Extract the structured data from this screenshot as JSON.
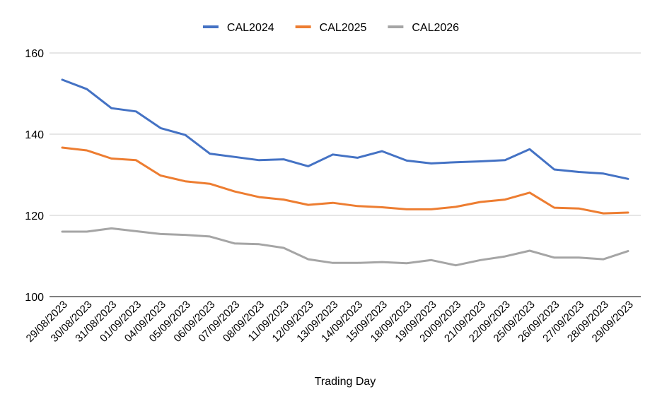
{
  "chart_data": {
    "type": "line",
    "title": "",
    "xlabel": "Trading Day",
    "ylabel": "",
    "ylim": [
      100,
      160
    ],
    "yticks": [
      100,
      120,
      140,
      160
    ],
    "grid": true,
    "legend_position": "top-center",
    "categories": [
      "29/08/2023",
      "30/08/2023",
      "31/08/2023",
      "01/09/2023",
      "04/09/2023",
      "05/09/2023",
      "06/09/2023",
      "07/09/2023",
      "08/09/2023",
      "11/09/2023",
      "12/09/2023",
      "13/09/2023",
      "14/09/2023",
      "15/09/2023",
      "18/09/2023",
      "19/09/2023",
      "20/09/2023",
      "21/09/2023",
      "22/09/2023",
      "25/09/2023",
      "26/09/2023",
      "27/09/2023",
      "28/09/2023",
      "29/09/2023"
    ],
    "series": [
      {
        "name": "CAL2024",
        "color": "#4472c4",
        "values": [
          153.4,
          151.1,
          146.4,
          145.6,
          141.5,
          139.8,
          135.2,
          134.4,
          133.6,
          133.8,
          132.1,
          135.0,
          134.2,
          135.8,
          133.5,
          132.8,
          133.1,
          133.3,
          133.6,
          136.3,
          131.3,
          130.7,
          130.3,
          129.0
        ]
      },
      {
        "name": "CAL2025",
        "color": "#ed7d31",
        "values": [
          136.7,
          136.0,
          134.0,
          133.6,
          129.8,
          128.4,
          127.8,
          125.9,
          124.5,
          123.9,
          122.6,
          123.1,
          122.3,
          122.0,
          121.5,
          121.5,
          122.1,
          123.3,
          123.9,
          125.6,
          121.9,
          121.7,
          120.5,
          120.7
        ]
      },
      {
        "name": "CAL2026",
        "color": "#a5a5a5",
        "values": [
          116.0,
          116.0,
          116.8,
          116.1,
          115.4,
          115.2,
          114.8,
          113.1,
          112.9,
          112.0,
          109.2,
          108.3,
          108.3,
          108.5,
          108.2,
          109.0,
          107.7,
          109.0,
          109.9,
          111.3,
          109.6,
          109.6,
          109.2,
          111.2
        ]
      }
    ]
  }
}
